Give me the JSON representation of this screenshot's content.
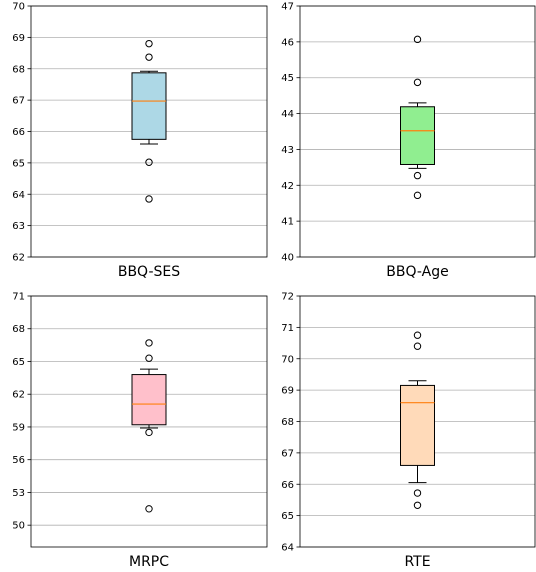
{
  "colors": {
    "grid": "#b0b0b0",
    "axis": "#000000",
    "median": "#ff7f0e",
    "whisker": "#000000",
    "flier_edge": "#000000"
  },
  "chart_data": [
    {
      "type": "box",
      "xlabel": "BBQ-SES",
      "ylim": [
        62,
        70
      ],
      "yticks": [
        62,
        63,
        64,
        65,
        66,
        67,
        68,
        69,
        70
      ],
      "grid": "y",
      "fill": "#add8e6",
      "box": {
        "whisker_low": 65.6,
        "q1": 65.75,
        "median": 66.97,
        "q3": 67.87,
        "whisker_high": 67.92
      },
      "outliers": [
        68.8,
        68.37,
        65.02,
        63.85
      ]
    },
    {
      "type": "box",
      "xlabel": "BBQ-Age",
      "ylim": [
        40,
        47
      ],
      "yticks": [
        40,
        41,
        42,
        43,
        44,
        45,
        46,
        47
      ],
      "grid": "y",
      "fill": "#90ee90",
      "box": {
        "whisker_low": 42.47,
        "q1": 42.58,
        "median": 43.52,
        "q3": 44.19,
        "whisker_high": 44.3
      },
      "outliers": [
        46.07,
        44.87,
        42.27,
        41.72
      ]
    },
    {
      "type": "box",
      "xlabel": "MRPC",
      "ylim": [
        48,
        71
      ],
      "yticks": [
        50,
        53,
        56,
        59,
        62,
        65,
        68,
        71
      ],
      "grid": "y",
      "fill": "#ffc0cb",
      "box": {
        "whisker_low": 58.9,
        "q1": 59.2,
        "median": 61.1,
        "q3": 63.8,
        "whisker_high": 64.3
      },
      "outliers": [
        66.7,
        65.3,
        58.5,
        51.5
      ]
    },
    {
      "type": "box",
      "xlabel": "RTE",
      "ylim": [
        64,
        72
      ],
      "yticks": [
        64,
        65,
        66,
        67,
        68,
        69,
        70,
        71,
        72
      ],
      "grid": "y",
      "fill": "#ffdab9",
      "box": {
        "whisker_low": 66.05,
        "q1": 66.6,
        "median": 68.6,
        "q3": 69.15,
        "whisker_high": 69.3
      },
      "outliers": [
        70.75,
        70.4,
        65.72,
        65.33
      ]
    }
  ]
}
